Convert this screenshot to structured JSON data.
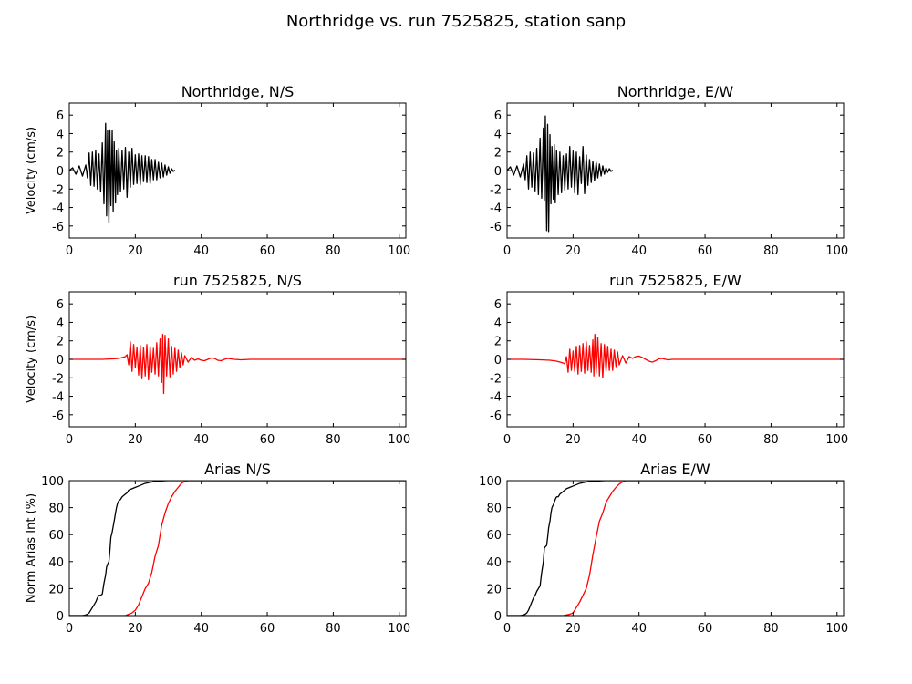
{
  "figure": {
    "title": "Northridge vs. run 7525825, station sanp"
  },
  "chart_data": [
    {
      "id": "ns-observed",
      "type": "line",
      "title": "Northridge, N/S",
      "xlabel": "",
      "ylabel": "Velocity (cm/s)",
      "xlim": [
        0,
        102
      ],
      "ylim": [
        -7.3,
        7.3
      ],
      "xticks": [
        0,
        20,
        40,
        60,
        80,
        100
      ],
      "yticks": [
        -6,
        -4,
        -2,
        0,
        2,
        4,
        6
      ],
      "grid": false,
      "series": [
        {
          "color": "#000000",
          "x": [
            0,
            1,
            2,
            3,
            4,
            5,
            5.5,
            6,
            6.5,
            7,
            7.5,
            8,
            8.5,
            9,
            9.5,
            10,
            10.5,
            11,
            11.3,
            11.6,
            12,
            12.3,
            12.6,
            13,
            13.3,
            13.6,
            14,
            14.3,
            14.6,
            15,
            15.5,
            16,
            16.5,
            17,
            17.5,
            18,
            18.5,
            19,
            19.5,
            20,
            20.5,
            21,
            21.5,
            22,
            22.5,
            23,
            23.5,
            24,
            24.5,
            25,
            25.5,
            26,
            26.5,
            27,
            27.5,
            28,
            28.5,
            29,
            29.5,
            30,
            30.5,
            31,
            31.5,
            32
          ],
          "values": [
            0,
            0.3,
            -0.4,
            0.5,
            -0.6,
            0.6,
            -0.8,
            1.9,
            -1.6,
            2.0,
            -1.7,
            2.2,
            -2.0,
            1.8,
            -2.3,
            3.0,
            -3.6,
            5.1,
            -4.9,
            4.3,
            -5.7,
            4.4,
            -3.8,
            4.3,
            -4.4,
            3.1,
            -3.5,
            2.2,
            -2.6,
            2.4,
            -2.3,
            2.2,
            -2.0,
            2.5,
            -2.9,
            2.0,
            -1.8,
            2.4,
            -1.5,
            1.7,
            -1.4,
            1.8,
            -1.5,
            1.6,
            -1.2,
            1.6,
            -1.3,
            1.5,
            -1.4,
            1.2,
            -1.0,
            1.2,
            -1.0,
            0.9,
            -0.8,
            0.8,
            -0.7,
            0.6,
            -0.5,
            0.4,
            -0.3,
            0.2,
            -0.1,
            0.05
          ]
        }
      ]
    },
    {
      "id": "ew-observed",
      "type": "line",
      "title": "Northridge, E/W",
      "xlabel": "",
      "ylabel": "",
      "xlim": [
        0,
        102
      ],
      "ylim": [
        -7.3,
        7.3
      ],
      "xticks": [
        0,
        20,
        40,
        60,
        80,
        100
      ],
      "yticks": [
        -6,
        -4,
        -2,
        0,
        2,
        4,
        6
      ],
      "grid": false,
      "series": [
        {
          "color": "#000000",
          "x": [
            0,
            1,
            2,
            3,
            4,
            5,
            5.5,
            6,
            6.5,
            7,
            7.5,
            8,
            8.5,
            9,
            9.5,
            10,
            10.5,
            11,
            11.3,
            11.6,
            12,
            12.3,
            12.6,
            13,
            13.3,
            13.6,
            14,
            14.3,
            14.6,
            15,
            15.5,
            16,
            16.5,
            17,
            17.5,
            18,
            18.5,
            19,
            19.5,
            20,
            20.5,
            21,
            21.5,
            22,
            22.5,
            23,
            23.5,
            24,
            24.5,
            25,
            25.5,
            26,
            26.5,
            27,
            27.5,
            28,
            28.5,
            29,
            29.5,
            30,
            30.5,
            31,
            31.5,
            32
          ],
          "values": [
            0,
            0.4,
            -0.5,
            0.5,
            -0.7,
            0.7,
            -1.0,
            1.6,
            -2.0,
            2.0,
            -1.8,
            1.9,
            -2.2,
            2.4,
            -2.6,
            3.5,
            -3.0,
            4.6,
            -3.2,
            5.9,
            -6.5,
            5.0,
            -6.6,
            3.9,
            -3.6,
            2.6,
            -3.1,
            2.8,
            -3.5,
            2.2,
            -2.6,
            2.0,
            -2.4,
            1.6,
            -2.1,
            1.8,
            -2.0,
            2.6,
            -1.8,
            2.1,
            -2.4,
            2.0,
            -2.6,
            1.5,
            -1.4,
            2.6,
            -2.5,
            1.7,
            -1.6,
            1.2,
            -1.3,
            1.0,
            -1.1,
            0.9,
            -0.8,
            0.7,
            -0.6,
            0.5,
            -0.4,
            0.3,
            -0.2,
            0.2,
            -0.1,
            0.05
          ]
        }
      ]
    },
    {
      "id": "ns-simulated",
      "type": "line",
      "title": "run 7525825, N/S",
      "xlabel": "",
      "ylabel": "Velocity (cm/s)",
      "xlim": [
        0,
        102
      ],
      "ylim": [
        -7.3,
        7.3
      ],
      "xticks": [
        0,
        20,
        40,
        60,
        80,
        100
      ],
      "yticks": [
        -6,
        -4,
        -2,
        0,
        2,
        4,
        6
      ],
      "grid": false,
      "series": [
        {
          "color": "#ff0000",
          "x": [
            0,
            5,
            10,
            13,
            15,
            16,
            17,
            17.5,
            18,
            18.5,
            19,
            19.5,
            20,
            20.5,
            21,
            21.5,
            22,
            22.5,
            23,
            23.5,
            24,
            24.5,
            25,
            25.5,
            26,
            26.5,
            27,
            27.5,
            28,
            28.3,
            28.6,
            29,
            29.5,
            30,
            30.5,
            31,
            31.5,
            32,
            32.5,
            33,
            33.5,
            34,
            34.5,
            35,
            36,
            37,
            38,
            39,
            40,
            41,
            42,
            43,
            44,
            45,
            46,
            47,
            48,
            49,
            50,
            52,
            55,
            60,
            70,
            80,
            90,
            102
          ],
          "values": [
            0,
            0,
            0,
            0.05,
            0.1,
            0.2,
            0.3,
            0.5,
            -0.6,
            1.9,
            -1.3,
            1.6,
            -0.9,
            1.3,
            -1.7,
            1.5,
            -2.1,
            1.3,
            -1.8,
            1.6,
            -2.2,
            1.4,
            -1.4,
            1.2,
            -1.6,
            1.8,
            -1.8,
            2.2,
            -2.5,
            2.7,
            -3.7,
            2.6,
            -1.8,
            2.2,
            -1.9,
            1.4,
            -1.6,
            1.2,
            -1.3,
            1.0,
            -0.9,
            0.7,
            -0.6,
            0.4,
            -0.3,
            0.2,
            -0.1,
            0.05,
            -0.1,
            -0.15,
            0,
            0.15,
            0.1,
            -0.1,
            -0.15,
            0,
            0.1,
            0.05,
            0,
            -0.05,
            0,
            0,
            0,
            0,
            0,
            0
          ]
        }
      ]
    },
    {
      "id": "ew-simulated",
      "type": "line",
      "title": "run 7525825, E/W",
      "xlabel": "",
      "ylabel": "",
      "xlim": [
        0,
        102
      ],
      "ylim": [
        -7.3,
        7.3
      ],
      "xticks": [
        0,
        20,
        40,
        60,
        80,
        100
      ],
      "yticks": [
        -6,
        -4,
        -2,
        0,
        2,
        4,
        6
      ],
      "grid": false,
      "series": [
        {
          "color": "#ff0000",
          "x": [
            0,
            5,
            10,
            13,
            15,
            16,
            17,
            17.5,
            18,
            18.5,
            19,
            19.5,
            20,
            20.5,
            21,
            21.5,
            22,
            22.5,
            23,
            23.5,
            24,
            24.5,
            25,
            25.5,
            26,
            26.3,
            26.6,
            27,
            27.5,
            28,
            28.5,
            29,
            29.5,
            30,
            30.5,
            31,
            31.5,
            32,
            32.5,
            33,
            33.5,
            34,
            35,
            36,
            37,
            38,
            39,
            40,
            41,
            42,
            43,
            44,
            45,
            46,
            47,
            48,
            49,
            50,
            52,
            55,
            60,
            70,
            80,
            90,
            102
          ],
          "values": [
            0,
            0,
            -0.05,
            -0.1,
            -0.2,
            -0.3,
            -0.4,
            -0.5,
            0.3,
            -1.4,
            1.1,
            -1.2,
            0.9,
            -1.3,
            1.4,
            -1.6,
            1.5,
            -1.3,
            1.7,
            -1.5,
            1.9,
            -1.2,
            1.5,
            -1.4,
            2.1,
            -1.8,
            2.7,
            -1.5,
            2.4,
            -1.8,
            1.7,
            -2.0,
            1.6,
            -1.3,
            1.4,
            -1.2,
            1.1,
            -1.2,
            1.0,
            -0.8,
            0.8,
            -0.6,
            0.4,
            -0.4,
            0.3,
            0.1,
            0.3,
            0.35,
            0.2,
            0,
            -0.2,
            -0.3,
            -0.15,
            0.05,
            0.1,
            0,
            -0.05,
            0,
            0,
            0,
            0,
            0,
            0,
            0,
            0
          ]
        }
      ]
    },
    {
      "id": "arias-ns",
      "type": "line",
      "title": "Arias N/S",
      "xlabel": "",
      "ylabel": "Norm Arias Int (%)",
      "xlim": [
        0,
        102
      ],
      "ylim": [
        0,
        100
      ],
      "xticks": [
        0,
        20,
        40,
        60,
        80,
        100
      ],
      "yticks": [
        0,
        20,
        40,
        60,
        80,
        100
      ],
      "grid": false,
      "series": [
        {
          "color": "#000000",
          "x": [
            0,
            4,
            5,
            5.5,
            6,
            6.5,
            7,
            7.5,
            8,
            8.5,
            9,
            9.5,
            10,
            10.5,
            11,
            11.3,
            11.6,
            12,
            12.3,
            12.6,
            13,
            13.3,
            13.6,
            14,
            14.3,
            14.6,
            15,
            15.5,
            16,
            16.5,
            17,
            17.5,
            18,
            19,
            20,
            21,
            22,
            23,
            24,
            25,
            26,
            27,
            28,
            29,
            30,
            31,
            32,
            102
          ],
          "values": [
            0,
            0,
            0.5,
            1,
            2,
            4,
            6,
            8,
            10,
            13,
            15,
            15,
            16,
            24,
            30,
            36,
            38,
            40,
            48,
            58,
            62,
            66,
            70,
            76,
            80,
            83,
            85,
            86,
            88,
            89,
            90,
            91,
            93,
            94,
            95,
            96,
            97,
            98,
            98.5,
            99,
            99.5,
            99.7,
            99.8,
            99.9,
            100,
            100,
            100,
            100
          ]
        },
        {
          "color": "#ff0000",
          "x": [
            0,
            17,
            18,
            19,
            20,
            21,
            22,
            23,
            24,
            25,
            26,
            27,
            28,
            29,
            30,
            31,
            32,
            33,
            34,
            35,
            36,
            102
          ],
          "values": [
            0,
            0,
            1,
            2,
            4,
            8,
            14,
            20,
            24,
            32,
            44,
            52,
            67,
            76,
            83,
            88,
            92,
            95,
            98,
            99.5,
            100,
            100
          ]
        }
      ]
    },
    {
      "id": "arias-ew",
      "type": "line",
      "title": "Arias E/W",
      "xlabel": "",
      "ylabel": "",
      "xlim": [
        0,
        102
      ],
      "ylim": [
        0,
        100
      ],
      "xticks": [
        0,
        20,
        40,
        60,
        80,
        100
      ],
      "yticks": [
        0,
        20,
        40,
        60,
        80,
        100
      ],
      "grid": false,
      "series": [
        {
          "color": "#000000",
          "x": [
            0,
            4,
            5,
            5.5,
            6,
            6.5,
            7,
            7.5,
            8,
            8.5,
            9,
            9.5,
            10,
            10.5,
            11,
            11.3,
            11.6,
            12,
            12.3,
            12.6,
            13,
            13.3,
            13.6,
            14,
            14.3,
            14.6,
            15,
            15.5,
            16,
            16.5,
            17,
            17.5,
            18,
            19,
            20,
            21,
            22,
            23,
            24,
            25,
            26,
            27,
            28,
            29,
            30,
            31,
            32,
            102
          ],
          "values": [
            0,
            0,
            0.5,
            1,
            2,
            4,
            7,
            10,
            13,
            15,
            18,
            20,
            22,
            32,
            40,
            50,
            51,
            52,
            58,
            65,
            70,
            76,
            80,
            82,
            84,
            86,
            88,
            88,
            90,
            91,
            92,
            93,
            94,
            95,
            96,
            97,
            98,
            98.5,
            99,
            99.3,
            99.5,
            99.7,
            99.8,
            99.9,
            100,
            100,
            100,
            100
          ]
        },
        {
          "color": "#ff0000",
          "x": [
            0,
            17,
            18,
            19,
            20,
            21,
            22,
            23,
            24,
            25,
            26,
            27,
            28,
            29,
            30,
            31,
            32,
            33,
            34,
            35,
            36,
            102
          ],
          "values": [
            0,
            0,
            0.5,
            1,
            2,
            6,
            10,
            15,
            20,
            30,
            45,
            58,
            70,
            76,
            84,
            88,
            92,
            95,
            97.5,
            99,
            100,
            100
          ]
        }
      ]
    }
  ]
}
